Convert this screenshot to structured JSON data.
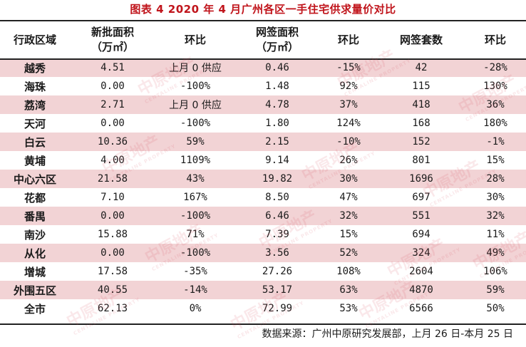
{
  "title": "图表  4    2020 年 4 月广州各区一手住宅供求量价对比",
  "headers": {
    "region": "行政区域",
    "new_area": "新批面积\n（万㎡）",
    "new_area_mom": "环比",
    "sign_area": "网签面积\n（万㎡）",
    "sign_area_mom": "环比",
    "sign_units": "网签套数",
    "sign_units_mom": "环比"
  },
  "rows": [
    [
      "越秀",
      "4.51",
      "上月 0 供应",
      "0.46",
      "-15%",
      "42",
      "-28%"
    ],
    [
      "海珠",
      "0.00",
      "-100%",
      "1.48",
      "92%",
      "115",
      "130%"
    ],
    [
      "荔湾",
      "2.71",
      "上月 0 供应",
      "4.78",
      "37%",
      "418",
      "36%"
    ],
    [
      "天河",
      "0.00",
      "-100%",
      "1.80",
      "124%",
      "168",
      "180%"
    ],
    [
      "白云",
      "10.36",
      "59%",
      "2.15",
      "-10%",
      "152",
      "-1%"
    ],
    [
      "黄埔",
      "4.00",
      "1109%",
      "9.14",
      "26%",
      "801",
      "15%"
    ],
    [
      "中心六区",
      "21.58",
      "43%",
      "19.82",
      "30%",
      "1696",
      "28%"
    ],
    [
      "花都",
      "7.10",
      "167%",
      "8.50",
      "47%",
      "697",
      "30%"
    ],
    [
      "番禺",
      "0.00",
      "-100%",
      "6.46",
      "32%",
      "551",
      "32%"
    ],
    [
      "南沙",
      "15.88",
      "71%",
      "7.39",
      "15%",
      "694",
      "11%"
    ],
    [
      "从化",
      "0.00",
      "-100%",
      "3.56",
      "52%",
      "324",
      "49%"
    ],
    [
      "增城",
      "17.58",
      "-35%",
      "27.26",
      "108%",
      "2604",
      "106%"
    ],
    [
      "外围五区",
      "40.55",
      "-14%",
      "53.17",
      "63%",
      "4870",
      "59%"
    ],
    [
      "全市",
      "62.13",
      "0%",
      "72.99",
      "53%",
      "6566",
      "50%"
    ]
  ],
  "source": "数据来源：广州中原研究发展部，上月 26 日-本月 25 日",
  "watermark": {
    "text": "中原地产",
    "sub": "CENTALINE PROPERTY"
  },
  "colors": {
    "title": "#c0141b",
    "shaded_row": "#f2d3d5",
    "rule": "#222222"
  }
}
